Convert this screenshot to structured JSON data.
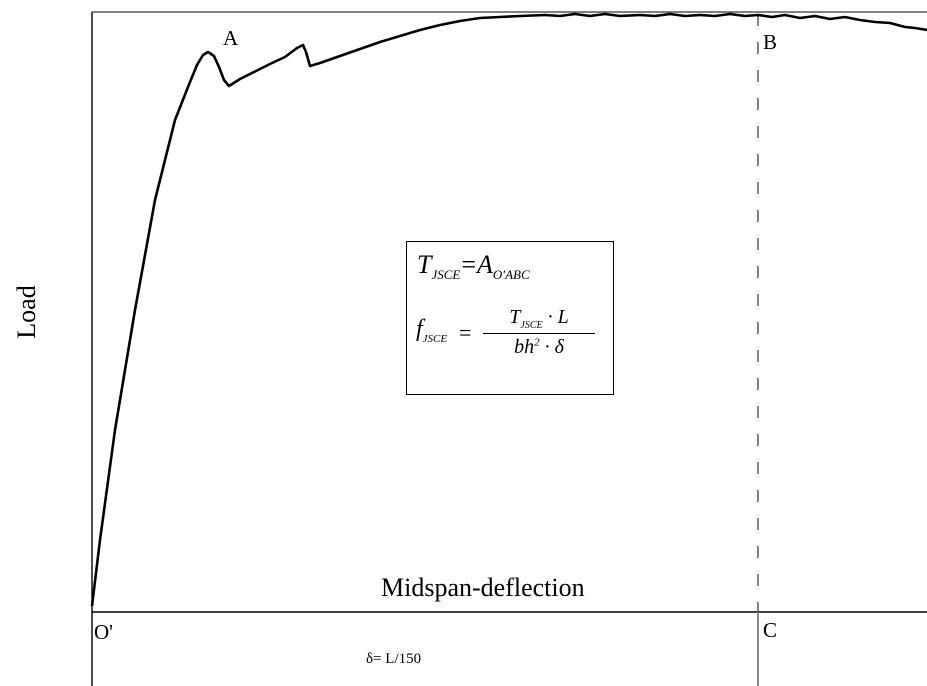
{
  "diagram": {
    "y_axis_label": "Load",
    "x_axis_label": "Midspan-deflection",
    "points": {
      "A": "A",
      "B": "B",
      "O": "O'",
      "C": "C"
    },
    "deflection_label": "δ= L/150",
    "formula": {
      "line1": {
        "lhs": "T",
        "lhs_sub": "JSCE",
        "eq": "=",
        "rhs": "A",
        "rhs_sub": "O'ABC"
      },
      "line2": {
        "lhs": "f",
        "lhs_sub": "JSCE",
        "eq": "=",
        "num": "T",
        "num_sub": "JSCE",
        "num_rest": " · L",
        "den_base": "bh",
        "den_sup": "2",
        "den_rest": " · δ"
      }
    }
  }
}
